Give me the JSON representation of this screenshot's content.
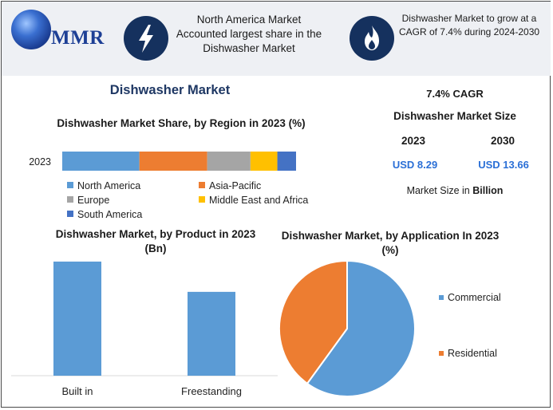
{
  "header": {
    "logo_text": "MMR",
    "highlight_1": "North America Market Accounted largest share in the Dishwasher Market",
    "highlight_2": "Dishwasher Market to grow at a CAGR of 7.4% during 2024-2030",
    "icon_1": "lightning-bolt-icon",
    "icon_2": "flame-icon"
  },
  "main_title": "Dishwasher Market",
  "market_size": {
    "cagr": "7.4% CAGR",
    "title": "Dishwasher Market Size",
    "year_1": "2023",
    "year_2": "2030",
    "value_1": "USD 8.29",
    "value_2": "USD 13.66",
    "note_prefix": "Market Size in ",
    "note_bold": "Billion"
  },
  "colors": {
    "north_america": "#5b9bd5",
    "asia_pacific": "#ed7d31",
    "europe": "#a5a5a5",
    "mea": "#ffc000",
    "south_america": "#4472c4",
    "bar": "#5b9bd5",
    "header_bg": "#eef0f4",
    "icon_bg": "#15315e",
    "title": "#1f3864",
    "accent_value": "#2a6fd6"
  },
  "chart_data": [
    {
      "type": "bar",
      "orientation": "horizontal",
      "stacked": true,
      "title": "Dishwasher Market Share, by Region in 2023 (%)",
      "categories": [
        "2023"
      ],
      "series": [
        {
          "name": "North America",
          "values": [
            33
          ]
        },
        {
          "name": "Asia-Pacific",
          "values": [
            29
          ]
        },
        {
          "name": "Europe",
          "values": [
            18.5
          ]
        },
        {
          "name": "Middle East and Africa",
          "values": [
            11.5
          ]
        },
        {
          "name": "South America",
          "values": [
            8
          ]
        }
      ],
      "legend_position": "bottom"
    },
    {
      "type": "bar",
      "title": "Dishwasher Market, by Product in 2023 (Bn)",
      "categories": [
        "Built in",
        "Freestanding"
      ],
      "values": [
        4.9,
        3.6
      ],
      "ylim": [
        0,
        5
      ]
    },
    {
      "type": "pie",
      "title": "Dishwasher Market, by Application In 2023 (%)",
      "labels": [
        "Commercial",
        "Residential"
      ],
      "values": [
        60,
        40
      ],
      "legend_position": "right"
    }
  ]
}
